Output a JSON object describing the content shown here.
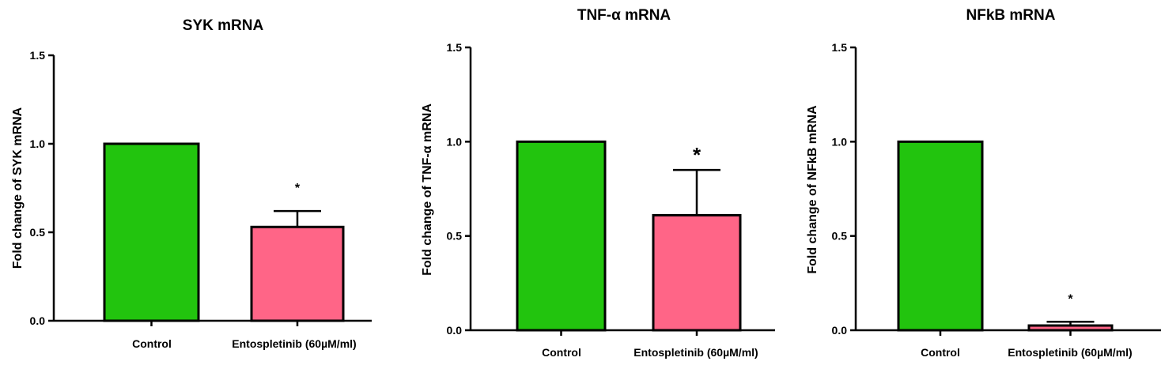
{
  "colors": {
    "control": "#22c40e",
    "treated": "#ff6587",
    "axis": "#000000"
  },
  "chart_data": [
    {
      "type": "bar",
      "title": "SYK mRNA",
      "ylabel": "Fold change of SYK mRNA",
      "xlabel": "",
      "categories": [
        "Control",
        "Entospletinib (60µM/ml)"
      ],
      "values": [
        1.0,
        0.53
      ],
      "errors": [
        0,
        0.09
      ],
      "significance": [
        "",
        "*"
      ],
      "ylim": [
        0,
        1.5
      ],
      "yticks": [
        "0.0",
        "0.5",
        "1.0",
        "1.5"
      ],
      "grid": false
    },
    {
      "type": "bar",
      "title": "TNF-α mRNA",
      "ylabel": "Fold change of TNF-α mRNA",
      "xlabel": "",
      "categories": [
        "Control",
        "Entospletinib (60µM/ml)"
      ],
      "values": [
        1.0,
        0.61
      ],
      "errors": [
        0,
        0.24
      ],
      "significance": [
        "",
        "*"
      ],
      "ylim": [
        0,
        1.5
      ],
      "yticks": [
        "0.0",
        "0.5",
        "1.0",
        "1.5"
      ],
      "grid": false
    },
    {
      "type": "bar",
      "title": "NFkB mRNA",
      "ylabel": "Fold change of NFkB mRNA",
      "xlabel": "",
      "categories": [
        "Control",
        "Entospletinib (60µM/ml)"
      ],
      "values": [
        1.0,
        0.025
      ],
      "errors": [
        0,
        0.02
      ],
      "significance": [
        "",
        "*"
      ],
      "ylim": [
        0,
        1.5
      ],
      "yticks": [
        "0.0",
        "0.5",
        "1.0",
        "1.5"
      ],
      "grid": false
    }
  ]
}
